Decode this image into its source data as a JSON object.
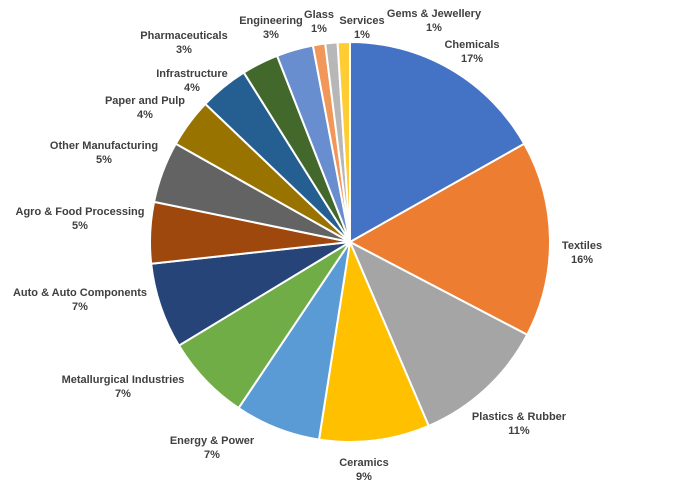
{
  "chart_data": {
    "type": "pie",
    "title": "",
    "slices": [
      {
        "label": "Chemicals",
        "value": 17,
        "value_label": "17%",
        "color": "#4472C4"
      },
      {
        "label": "Textiles",
        "value": 16,
        "value_label": "16%",
        "color": "#ED7D31"
      },
      {
        "label": "Plastics & Rubber",
        "value": 11,
        "value_label": "11%",
        "color": "#A5A5A5"
      },
      {
        "label": "Ceramics",
        "value": 9,
        "value_label": "9%",
        "color": "#FFC000"
      },
      {
        "label": "Energy & Power",
        "value": 7,
        "value_label": "7%",
        "color": "#5B9BD5"
      },
      {
        "label": "Metallurgical Industries",
        "value": 7,
        "value_label": "7%",
        "color": "#70AD47"
      },
      {
        "label": "Auto & Auto Components",
        "value": 7,
        "value_label": "7%",
        "color": "#264478"
      },
      {
        "label": "Agro & Food Processing",
        "value": 5,
        "value_label": "5%",
        "color": "#9E480E"
      },
      {
        "label": "Other Manufacturing",
        "value": 5,
        "value_label": "5%",
        "color": "#636363"
      },
      {
        "label": "Paper and Pulp",
        "value": 4,
        "value_label": "4%",
        "color": "#997300"
      },
      {
        "label": "Infrastructure",
        "value": 4,
        "value_label": "4%",
        "color": "#255E91"
      },
      {
        "label": "Pharmaceuticals",
        "value": 3,
        "value_label": "3%",
        "color": "#43682B"
      },
      {
        "label": "Engineering",
        "value": 3,
        "value_label": "3%",
        "color": "#698ED0"
      },
      {
        "label": "Glass",
        "value": 1,
        "value_label": "1%",
        "color": "#F1975A"
      },
      {
        "label": "Services",
        "value": 1,
        "value_label": "1%",
        "color": "#B7B7B7"
      },
      {
        "label": "Gems & Jewellery",
        "value": 1,
        "value_label": "1%",
        "color": "#FFCD33"
      }
    ],
    "legend": "none",
    "data_labels": "outside"
  }
}
